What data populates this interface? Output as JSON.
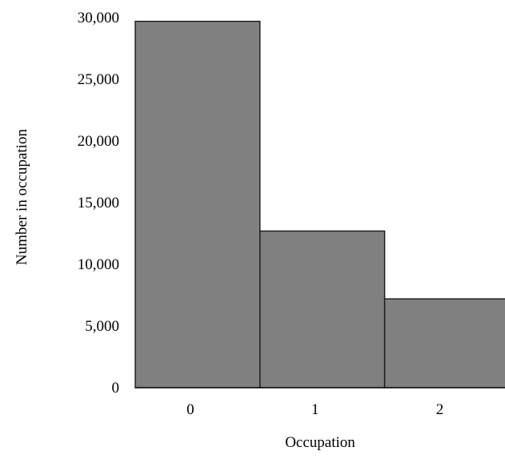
{
  "chart_data": {
    "type": "bar",
    "title": "",
    "xlabel": "Occupation",
    "ylabel": "Number in occupation",
    "categories": [
      "0",
      "1",
      "2"
    ],
    "values": [
      29700,
      12700,
      7200
    ],
    "ylim": [
      0,
      30000
    ],
    "yticks": [
      0,
      5000,
      10000,
      15000,
      20000,
      25000,
      30000
    ],
    "ytick_labels": [
      "0",
      "5,000",
      "10,000",
      "15,000",
      "20,000",
      "25,000",
      "30,000"
    ],
    "grid": false,
    "legend": "none",
    "bar_color": "#808080",
    "bar_edge_color": "#1a1a1a",
    "axis_color": "#000000"
  }
}
